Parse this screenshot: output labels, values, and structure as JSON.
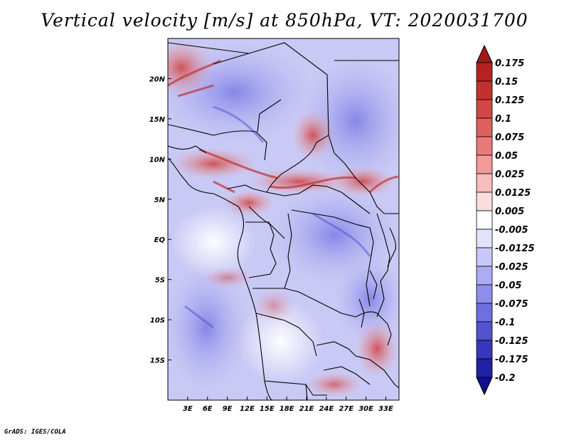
{
  "title": "Vertical velocity [m/s] at 850hPa, VT: 2020031700",
  "credit": "GrADS: IGES/COLA",
  "map": {
    "lon_range": [
      0,
      35
    ],
    "lat_range": [
      -20,
      25
    ],
    "lat_labels": [
      {
        "lat": 20,
        "text": "20N"
      },
      {
        "lat": 15,
        "text": "15N"
      },
      {
        "lat": 10,
        "text": "10N"
      },
      {
        "lat": 5,
        "text": "5N"
      },
      {
        "lat": 0,
        "text": "EQ"
      },
      {
        "lat": -5,
        "text": "5S"
      },
      {
        "lat": -10,
        "text": "10S"
      },
      {
        "lat": -15,
        "text": "15S"
      }
    ],
    "lon_labels": [
      {
        "lon": 3,
        "text": "3E"
      },
      {
        "lon": 6,
        "text": "6E"
      },
      {
        "lon": 9,
        "text": "9E"
      },
      {
        "lon": 12,
        "text": "12E"
      },
      {
        "lon": 15,
        "text": "15E"
      },
      {
        "lon": 18,
        "text": "18E"
      },
      {
        "lon": 21,
        "text": "21E"
      },
      {
        "lon": 24,
        "text": "24E"
      },
      {
        "lon": 27,
        "text": "27E"
      },
      {
        "lon": 30,
        "text": "30E"
      },
      {
        "lon": 33,
        "text": "33E"
      }
    ]
  },
  "colorbar": {
    "levels": [
      "0.175",
      "0.15",
      "0.125",
      "0.1",
      "0.075",
      "0.05",
      "0.025",
      "0.0125",
      "0.005",
      "-0.005",
      "-0.0125",
      "-0.025",
      "-0.05",
      "-0.075",
      "-0.1",
      "-0.125",
      "-0.175",
      "-0.2"
    ],
    "colors": [
      "#a01818",
      "#b42222",
      "#c43030",
      "#d44545",
      "#e06060",
      "#e87a7a",
      "#f29a9a",
      "#f8bcbc",
      "#fcdcdc",
      "#ffffff",
      "#e2e2fc",
      "#c8c8f8",
      "#acacf2",
      "#8e8eea",
      "#6f6fe0",
      "#5252d2",
      "#3636c0",
      "#2020a8",
      "#10108e"
    ]
  }
}
